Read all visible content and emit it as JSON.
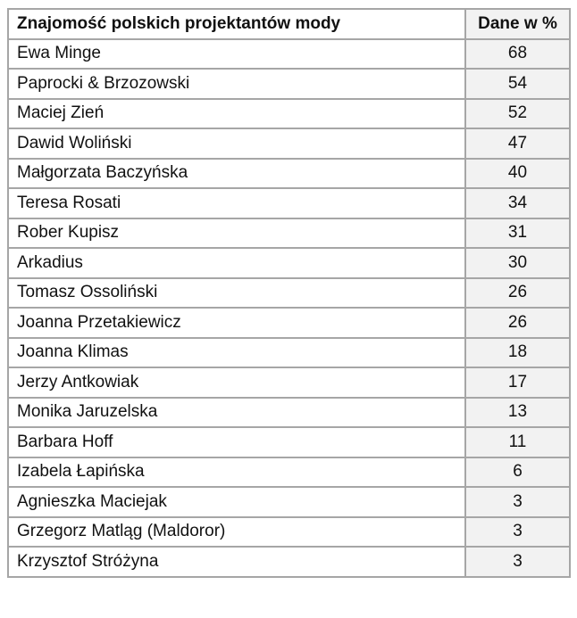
{
  "table": {
    "headers": [
      "Znajomość polskich projektantów mody",
      "Dane w %"
    ],
    "rows": [
      [
        "Ewa Minge",
        "68"
      ],
      [
        "Paprocki & Brzozowski",
        "54"
      ],
      [
        "Maciej Zień",
        "52"
      ],
      [
        "Dawid Woliński",
        "47"
      ],
      [
        "Małgorzata Baczyńska",
        "40"
      ],
      [
        "Teresa Rosati",
        "34"
      ],
      [
        "Rober Kupisz",
        "31"
      ],
      [
        "Arkadius",
        "30"
      ],
      [
        "Tomasz Ossoliński",
        "26"
      ],
      [
        "Joanna Przetakiewicz",
        "26"
      ],
      [
        "Joanna Klimas",
        "18"
      ],
      [
        "Jerzy Antkowiak",
        "17"
      ],
      [
        "Monika Jaruzelska",
        "13"
      ],
      [
        "Barbara Hoff",
        "11"
      ],
      [
        "Izabela Łapińska",
        "6"
      ],
      [
        "Agnieszka Maciejak",
        "3"
      ],
      [
        "Grzegorz Matląg (Maldoror)",
        "3"
      ],
      [
        "Krzysztof Stróżyna",
        "3"
      ]
    ]
  }
}
